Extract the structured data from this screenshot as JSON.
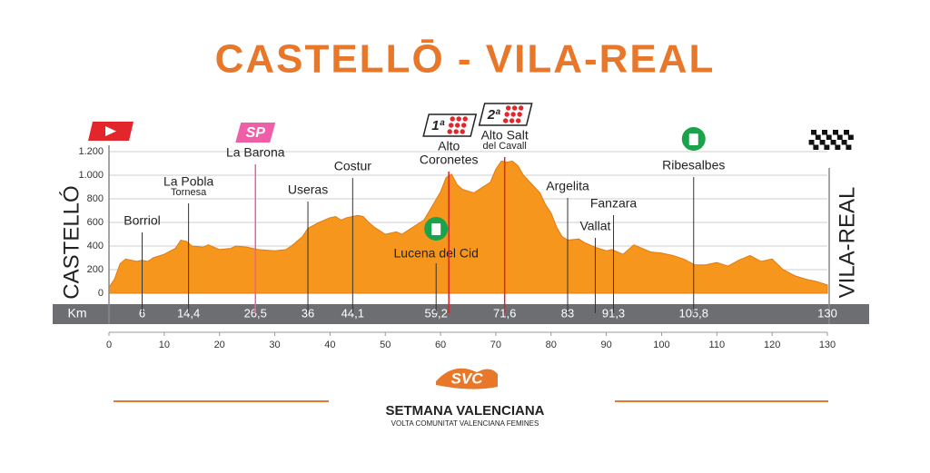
{
  "chart_data": {
    "type": "area",
    "title": "CASTELLŌ  - VILA-REAL",
    "color": "#f7961c",
    "start_name": "CASTELLÓ",
    "finish_name": "VILA-REAL",
    "km_axis_label": "Km",
    "xlim": [
      0,
      130
    ],
    "xticks": [
      0,
      10,
      20,
      30,
      40,
      50,
      60,
      70,
      80,
      90,
      100,
      110,
      120,
      130
    ],
    "ylim": [
      0,
      1200
    ],
    "yticks": [
      0,
      200,
      400,
      600,
      800,
      {
        "value": 1000,
        "label": "1.000"
      },
      {
        "value": 1200,
        "label": "1.200"
      }
    ],
    "x": [
      0,
      1,
      2,
      3,
      4,
      5,
      6,
      7,
      8,
      10,
      12,
      13,
      14,
      15,
      17,
      18,
      20,
      22,
      23,
      25,
      27,
      30,
      32,
      33,
      35,
      36,
      38,
      40,
      41,
      42,
      43,
      45,
      46,
      47,
      48,
      50,
      52,
      53,
      55,
      57,
      59,
      60,
      61,
      62,
      63,
      64,
      66,
      67,
      69,
      70,
      71,
      72,
      73,
      74,
      75,
      77,
      78,
      79,
      80,
      81,
      82,
      83,
      85,
      86,
      88,
      90,
      91,
      93,
      95,
      96,
      98,
      100,
      102,
      104,
      106,
      108,
      110,
      112,
      114,
      116,
      118,
      120,
      122,
      124,
      126,
      128,
      130
    ],
    "values": [
      50,
      120,
      250,
      290,
      280,
      270,
      280,
      270,
      300,
      330,
      380,
      450,
      440,
      400,
      390,
      410,
      370,
      380,
      400,
      390,
      370,
      360,
      370,
      400,
      480,
      550,
      600,
      640,
      650,
      620,
      640,
      660,
      650,
      600,
      560,
      500,
      520,
      500,
      560,
      620,
      780,
      860,
      980,
      1010,
      920,
      880,
      850,
      880,
      940,
      1050,
      1120,
      1110,
      1120,
      1080,
      1000,
      900,
      850,
      750,
      680,
      560,
      480,
      450,
      460,
      430,
      390,
      360,
      370,
      330,
      410,
      390,
      350,
      340,
      320,
      290,
      240,
      240,
      260,
      230,
      280,
      320,
      270,
      290,
      200,
      150,
      120,
      100,
      70
    ],
    "waypoints": [
      {
        "lines": [
          "Borriol"
        ],
        "km": 6,
        "km_label": "6"
      },
      {
        "lines": [
          "La Pobla",
          "Tornesa"
        ],
        "km": 14.4,
        "km_label": "14,4"
      },
      {
        "lines": [
          "La Barona"
        ],
        "km": 26.5,
        "km_label": "26,5",
        "badge": "SP"
      },
      {
        "lines": [
          "Useras"
        ],
        "km": 36,
        "km_label": "36"
      },
      {
        "lines": [
          "Costur"
        ],
        "km": 44.1,
        "km_label": "44,1"
      },
      {
        "lines": [
          "Lucena del Cid"
        ],
        "km": 59.2,
        "km_label": "59,2"
      },
      {
        "lines": [
          "Alto",
          "Coronetes"
        ],
        "km": 61.5,
        "badge": "1ª"
      },
      {
        "lines": [
          "Alto Salt",
          "del Cavall"
        ],
        "km": 71.6,
        "km_label": "71,6",
        "badge": "2ª"
      },
      {
        "lines": [
          "Argelita"
        ],
        "km": 83,
        "km_label": "83"
      },
      {
        "lines": [
          "Vallat"
        ],
        "km": 88
      },
      {
        "lines": [
          "Fanzara"
        ],
        "km": 91.3,
        "km_label": "91,3"
      },
      {
        "lines": [
          "Ribesalbes"
        ],
        "km": 105.8,
        "km_label": "105,8"
      },
      {
        "km": 130,
        "km_label": "130"
      }
    ],
    "logo_mark": "SVC",
    "logo_title": "SETMANA VALENCIANA",
    "logo_subtitle": "VOLTA COMUNITAT VALENCIANA FEMINES"
  }
}
